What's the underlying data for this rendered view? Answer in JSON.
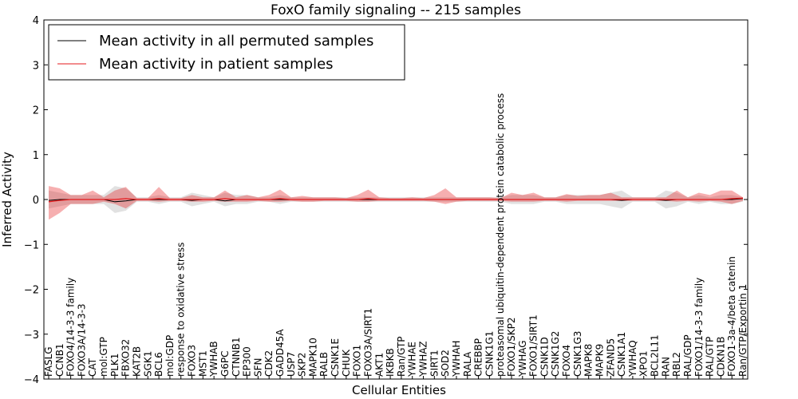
{
  "chart_data": {
    "type": "line",
    "title": "FoxO family signaling -- 215 samples",
    "xlabel": "Cellular Entities",
    "ylabel": "Inferred Activity",
    "ylim": [
      -4,
      4
    ],
    "yticks": [
      -4,
      -3,
      -2,
      -1,
      0,
      1,
      2,
      3,
      4
    ],
    "ytick_labels": [
      "−4",
      "−3",
      "−2",
      "−1",
      "0",
      "1",
      "2",
      "3",
      "4"
    ],
    "legend_position": "top-left",
    "categories": [
      "FASLG",
      "CCNB1",
      "FOXO4/14-3-3 family",
      "FOXO3A/14-3-3",
      "CAT",
      "mol:GTP",
      "PLK1",
      "FBXO32",
      "KAT2B",
      "SGK1",
      "BCL6",
      "mol:GDP",
      "response to oxidative stress",
      "FOXO3",
      "MST1",
      "YWHAB",
      "G6PC",
      "CTNNB1",
      "EP300",
      "SFN",
      "CDK2",
      "GADD45A",
      "USP7",
      "SKP2",
      "MAPK10",
      "RALB",
      "CSNK1E",
      "CHUK",
      "FOXO1",
      "FOXO3A/SIRT1",
      "AKT1",
      "IKBKB",
      "Ran/GTP",
      "YWHAE",
      "YWHAZ",
      "SIRT1",
      "SOD2",
      "YWHAH",
      "RALA",
      "CREBBP",
      "CSNK1G1",
      "proteasomal ubiquitin-dependent protein catabolic process",
      "FOXO1/SKP2",
      "YWHAG",
      "FOXO1/SIRT1",
      "CSNK1D",
      "CSNK1G2",
      "FOXO4",
      "CSNK1G3",
      "MAPK8",
      "MAPK9",
      "ZFAND5",
      "CSNK1A1",
      "YWHAQ",
      "XPO1",
      "BCL2L11",
      "RAN",
      "RBL2",
      "RAL/GDP",
      "FOXO1/14-3-3 family",
      "RAL/GTP",
      "CDKN1B",
      "FOXO1-3a-4/beta catenin",
      "Ran/GTP/Exportin 1"
    ],
    "series": [
      {
        "name": "Mean activity in all permuted samples",
        "color": "#000000",
        "values": [
          -0.02,
          0.0,
          0.0,
          0.0,
          0.0,
          0.0,
          -0.05,
          -0.03,
          0.0,
          0.0,
          0.0,
          0.0,
          0.0,
          -0.02,
          0.0,
          0.0,
          -0.03,
          0.0,
          0.0,
          0.0,
          0.0,
          0.0,
          0.0,
          0.0,
          0.0,
          0.0,
          0.0,
          0.0,
          0.0,
          0.0,
          0.0,
          0.0,
          0.0,
          0.0,
          0.0,
          0.0,
          0.0,
          0.0,
          0.0,
          0.0,
          0.0,
          0.0,
          0.0,
          0.0,
          0.0,
          0.0,
          0.0,
          0.0,
          0.0,
          0.0,
          0.0,
          0.0,
          -0.02,
          0.0,
          0.0,
          0.0,
          -0.02,
          0.0,
          0.0,
          0.0,
          0.0,
          0.0,
          0.0,
          0.02
        ],
        "band_lower": [
          -0.2,
          -0.15,
          -0.1,
          -0.1,
          -0.1,
          -0.1,
          -0.3,
          -0.25,
          -0.05,
          -0.05,
          -0.1,
          -0.05,
          -0.05,
          -0.15,
          -0.1,
          -0.05,
          -0.15,
          -0.1,
          -0.1,
          -0.05,
          -0.05,
          -0.1,
          -0.05,
          -0.05,
          -0.05,
          -0.05,
          -0.05,
          -0.05,
          -0.05,
          -0.05,
          -0.05,
          -0.05,
          -0.05,
          -0.05,
          -0.05,
          -0.05,
          -0.05,
          -0.05,
          -0.05,
          -0.05,
          -0.05,
          -0.05,
          -0.1,
          -0.1,
          -0.1,
          -0.05,
          -0.05,
          -0.1,
          -0.1,
          -0.1,
          -0.1,
          -0.15,
          -0.2,
          -0.05,
          -0.05,
          -0.05,
          -0.2,
          -0.15,
          -0.05,
          -0.1,
          -0.05,
          -0.1,
          -0.1,
          -0.05
        ],
        "band_upper": [
          0.2,
          0.15,
          0.1,
          0.1,
          0.1,
          0.1,
          0.3,
          0.25,
          0.05,
          0.05,
          0.1,
          0.05,
          0.05,
          0.15,
          0.1,
          0.05,
          0.15,
          0.1,
          0.1,
          0.05,
          0.05,
          0.1,
          0.05,
          0.05,
          0.05,
          0.05,
          0.05,
          0.05,
          0.05,
          0.05,
          0.05,
          0.05,
          0.05,
          0.05,
          0.05,
          0.05,
          0.05,
          0.05,
          0.05,
          0.05,
          0.05,
          0.05,
          0.1,
          0.1,
          0.1,
          0.05,
          0.05,
          0.1,
          0.1,
          0.1,
          0.1,
          0.15,
          0.2,
          0.05,
          0.05,
          0.05,
          0.2,
          0.15,
          0.05,
          0.1,
          0.05,
          0.1,
          0.1,
          0.05
        ]
      },
      {
        "name": "Mean activity in patient samples",
        "color": "#e41a1c",
        "values": [
          -0.05,
          -0.02,
          0.0,
          0.0,
          0.0,
          0.0,
          0.0,
          0.02,
          0.0,
          0.0,
          0.02,
          0.0,
          0.0,
          0.0,
          0.0,
          0.0,
          0.02,
          0.0,
          0.0,
          0.0,
          0.0,
          0.02,
          0.0,
          0.0,
          0.0,
          0.0,
          0.0,
          0.0,
          0.0,
          0.02,
          0.0,
          0.0,
          0.0,
          0.0,
          0.0,
          0.0,
          0.0,
          0.0,
          0.0,
          0.0,
          0.0,
          0.0,
          0.0,
          0.0,
          0.0,
          0.0,
          0.0,
          0.0,
          0.0,
          0.0,
          0.0,
          0.0,
          0.0,
          0.0,
          0.0,
          0.0,
          0.0,
          0.0,
          0.0,
          0.0,
          0.0,
          0.0,
          0.02,
          0.03
        ],
        "band_lower": [
          -0.45,
          -0.3,
          -0.1,
          -0.1,
          -0.1,
          -0.05,
          -0.1,
          -0.2,
          -0.03,
          -0.03,
          -0.05,
          -0.03,
          -0.03,
          -0.05,
          -0.05,
          -0.03,
          -0.05,
          -0.05,
          -0.05,
          -0.03,
          -0.05,
          -0.05,
          -0.03,
          -0.05,
          -0.05,
          -0.03,
          -0.03,
          -0.03,
          -0.05,
          -0.05,
          -0.03,
          -0.03,
          -0.03,
          -0.03,
          -0.03,
          -0.05,
          -0.1,
          -0.05,
          -0.03,
          -0.03,
          -0.03,
          -0.03,
          -0.05,
          -0.05,
          -0.05,
          -0.03,
          -0.03,
          -0.05,
          -0.03,
          -0.03,
          -0.03,
          -0.03,
          -0.03,
          -0.03,
          -0.03,
          -0.03,
          -0.03,
          -0.05,
          -0.03,
          -0.05,
          -0.03,
          -0.05,
          -0.1,
          -0.03
        ],
        "band_upper": [
          0.3,
          0.25,
          0.1,
          0.1,
          0.2,
          0.05,
          0.2,
          0.28,
          0.03,
          0.03,
          0.28,
          0.03,
          0.03,
          0.1,
          0.05,
          0.05,
          0.2,
          0.05,
          0.1,
          0.05,
          0.1,
          0.22,
          0.05,
          0.08,
          0.05,
          0.05,
          0.05,
          0.03,
          0.1,
          0.22,
          0.05,
          0.03,
          0.03,
          0.05,
          0.03,
          0.1,
          0.25,
          0.05,
          0.05,
          0.05,
          0.05,
          0.03,
          0.15,
          0.1,
          0.15,
          0.05,
          0.05,
          0.12,
          0.08,
          0.1,
          0.1,
          0.15,
          0.05,
          0.05,
          0.05,
          0.05,
          0.05,
          0.2,
          0.05,
          0.15,
          0.1,
          0.2,
          0.2,
          0.05
        ]
      }
    ]
  }
}
